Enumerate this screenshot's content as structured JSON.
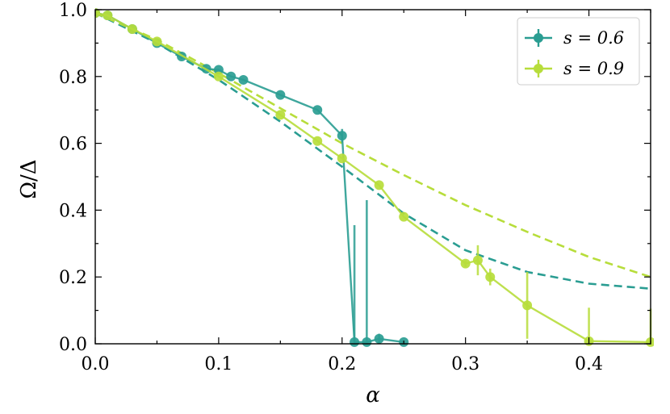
{
  "chart_data": {
    "type": "line",
    "xlabel": "α",
    "ylabel": "Ω/Δ",
    "xlim": [
      0.0,
      0.45
    ],
    "ylim": [
      0.0,
      1.0
    ],
    "xticks": [
      0.0,
      0.1,
      0.2,
      0.3,
      0.4
    ],
    "yticks": [
      0.0,
      0.2,
      0.4,
      0.6,
      0.8,
      1.0
    ],
    "xtick_labels": [
      "0.0",
      "0.1",
      "0.2",
      "0.3",
      "0.4"
    ],
    "ytick_labels": [
      "0.0",
      "0.2",
      "0.4",
      "0.6",
      "0.8",
      "1.0"
    ],
    "grid": false,
    "legend_position": "top-right",
    "series": [
      {
        "name": "s = 0.6",
        "color": "#2a9d92",
        "points": [
          {
            "x": 0.0,
            "y": 0.99,
            "err": 0.005
          },
          {
            "x": 0.01,
            "y": 0.983,
            "err": 0.005
          },
          {
            "x": 0.03,
            "y": 0.942,
            "err": 0.005
          },
          {
            "x": 0.05,
            "y": 0.9,
            "err": 0.005
          },
          {
            "x": 0.07,
            "y": 0.86,
            "err": 0.005
          },
          {
            "x": 0.09,
            "y": 0.823,
            "err": 0.005
          },
          {
            "x": 0.1,
            "y": 0.82,
            "err": 0.005
          },
          {
            "x": 0.11,
            "y": 0.8,
            "err": 0.005
          },
          {
            "x": 0.12,
            "y": 0.79,
            "err": 0.005
          },
          {
            "x": 0.15,
            "y": 0.745,
            "err": 0.005
          },
          {
            "x": 0.18,
            "y": 0.7,
            "err": 0.005
          },
          {
            "x": 0.2,
            "y": 0.623,
            "err": 0.02
          },
          {
            "x": 0.21,
            "y": 0.005,
            "err": 0.35
          },
          {
            "x": 0.22,
            "y": 0.005,
            "err": 0.425
          },
          {
            "x": 0.23,
            "y": 0.015,
            "err": 0.015
          },
          {
            "x": 0.25,
            "y": 0.005,
            "err": 0.005
          }
        ],
        "theory": {
          "x": [
            0.0,
            0.05,
            0.1,
            0.15,
            0.2,
            0.25,
            0.3,
            0.35,
            0.4,
            0.45
          ],
          "y": [
            0.99,
            0.9,
            0.79,
            0.665,
            0.53,
            0.39,
            0.28,
            0.215,
            0.18,
            0.165
          ]
        }
      },
      {
        "name": "s = 0.9",
        "color": "#b7dd3b",
        "points": [
          {
            "x": 0.0,
            "y": 0.99,
            "err": 0.005
          },
          {
            "x": 0.01,
            "y": 0.983,
            "err": 0.005
          },
          {
            "x": 0.03,
            "y": 0.942,
            "err": 0.005
          },
          {
            "x": 0.05,
            "y": 0.905,
            "err": 0.005
          },
          {
            "x": 0.1,
            "y": 0.8,
            "err": 0.005
          },
          {
            "x": 0.15,
            "y": 0.685,
            "err": 0.005
          },
          {
            "x": 0.18,
            "y": 0.607,
            "err": 0.005
          },
          {
            "x": 0.2,
            "y": 0.555,
            "err": 0.005
          },
          {
            "x": 0.23,
            "y": 0.475,
            "err": 0.005
          },
          {
            "x": 0.25,
            "y": 0.38,
            "err": 0.005
          },
          {
            "x": 0.3,
            "y": 0.24,
            "err": 0.01
          },
          {
            "x": 0.31,
            "y": 0.25,
            "err": 0.045
          },
          {
            "x": 0.32,
            "y": 0.2,
            "err": 0.025
          },
          {
            "x": 0.35,
            "y": 0.115,
            "err": 0.1
          },
          {
            "x": 0.4,
            "y": 0.008,
            "err": 0.1
          },
          {
            "x": 0.45,
            "y": 0.005,
            "err": 0.1
          }
        ],
        "theory": {
          "x": [
            0.0,
            0.05,
            0.1,
            0.15,
            0.2,
            0.25,
            0.3,
            0.35,
            0.4,
            0.45
          ],
          "y": [
            0.99,
            0.91,
            0.81,
            0.705,
            0.6,
            0.505,
            0.415,
            0.335,
            0.26,
            0.2
          ]
        }
      }
    ]
  }
}
